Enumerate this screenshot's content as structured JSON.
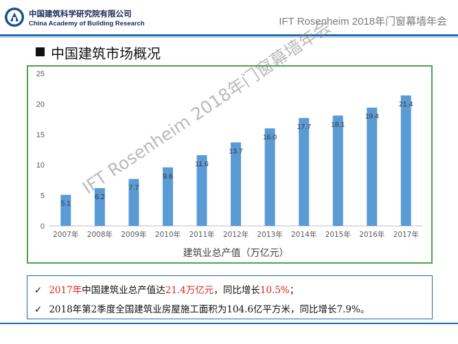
{
  "header": {
    "logo_cn": "中国建筑科学研究院有限公司",
    "logo_en": "China Academy of Building Research",
    "event": "IFT Rosenheim 2018年门窗幕墙年会"
  },
  "slide": {
    "title": "中国建筑市场概况"
  },
  "watermark": "IFT Rosenheim 2018年门窗幕墙年会",
  "notes": [
    {
      "check": "✓",
      "parts": [
        {
          "text": "2017年",
          "red": true
        },
        {
          "text": "中国建筑业总产值达",
          "red": false
        },
        {
          "text": "21.4万亿元",
          "red": true
        },
        {
          "text": "，同比增长",
          "red": false
        },
        {
          "text": "10.5%",
          "red": true
        },
        {
          "text": "；",
          "red": false
        }
      ]
    },
    {
      "check": "✓",
      "parts": [
        {
          "text": "2018年第2季度全国建筑业房屋施工面积为104.6亿平方米，同比增长7.9%。",
          "red": false
        }
      ]
    }
  ],
  "colors": {
    "bar": "#5b9bd5",
    "accent_red": "#d9261c",
    "frame_green": "#4ea24e",
    "brand_blue": "#1d67a8"
  },
  "chart_data": {
    "type": "bar",
    "categories": [
      "2007年",
      "2008年",
      "2009年",
      "2010年",
      "2011年",
      "2012年",
      "2013年",
      "2014年",
      "2015年",
      "2016年",
      "2017年"
    ],
    "values": [
      5.1,
      6.2,
      7.7,
      9.6,
      11.6,
      13.7,
      16.0,
      17.7,
      18.1,
      19.4,
      21.4
    ],
    "labels": [
      "5.1",
      "6.2",
      "7.7",
      "9.6",
      "11.6",
      "13.7",
      "16.0",
      "17.7",
      "18.1",
      "19.4",
      "21.4"
    ],
    "yticks": [
      "0",
      "5",
      "10",
      "15",
      "20",
      "25"
    ],
    "ylim": [
      0,
      25
    ],
    "xlabel": "建筑业总产值（万亿元）",
    "ylabel": "",
    "title": "",
    "grid": false
  }
}
